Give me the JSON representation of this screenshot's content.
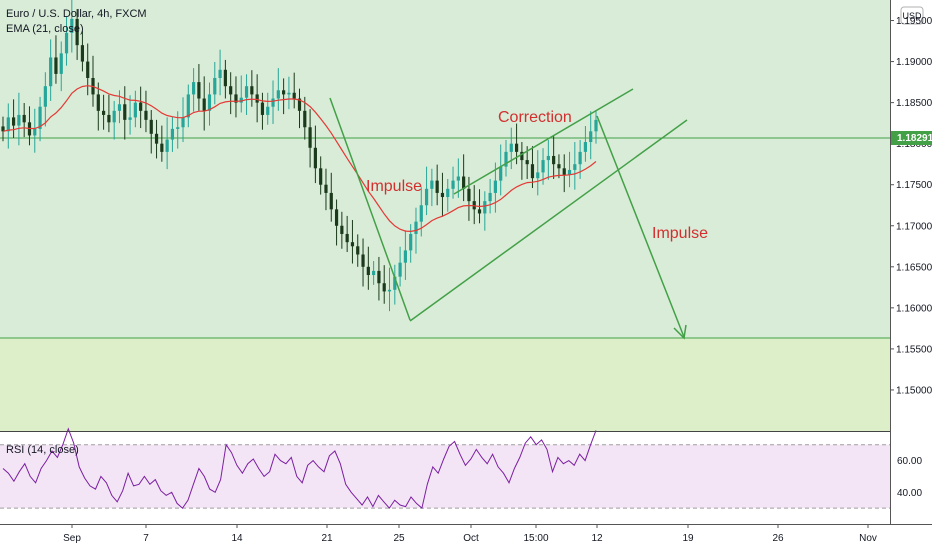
{
  "header": {
    "symbol_title": "Euro / U.S. Dollar, 4h, FXCM",
    "indicator": "EMA (21, close)"
  },
  "rsi": {
    "label": "RSI (14, close)",
    "ticks": [
      "60.00",
      "40.00"
    ],
    "upper_band": 70,
    "lower_band": 30,
    "series_values": [
      55,
      52,
      47,
      53,
      58,
      50,
      46,
      55,
      60,
      66,
      62,
      70,
      80,
      71,
      56,
      49,
      44,
      42,
      50,
      46,
      38,
      34,
      41,
      52,
      44,
      45,
      50,
      45,
      48,
      41,
      38,
      40,
      33,
      30,
      35,
      45,
      55,
      50,
      42,
      40,
      48,
      70,
      65,
      57,
      52,
      58,
      61,
      55,
      50,
      53,
      64,
      60,
      58,
      62,
      50,
      46,
      57,
      60,
      56,
      53,
      63,
      66,
      58,
      45,
      40,
      36,
      32,
      37,
      31,
      38,
      34,
      30,
      35,
      32,
      31,
      37,
      33,
      30,
      45,
      56,
      52,
      61,
      69,
      72,
      64,
      57,
      61,
      67,
      62,
      58,
      64,
      56,
      52,
      46,
      55,
      62,
      71,
      75,
      70,
      73,
      67,
      53,
      62,
      58,
      60,
      57,
      64,
      60,
      70,
      79
    ],
    "color": "#7b1fa2",
    "band_fill": "#f3e5f5"
  },
  "price_axis": {
    "currency_button": "USD",
    "ticks": [
      "1.19500",
      "1.19000",
      "1.18500",
      "1.18000",
      "1.17500",
      "1.17000",
      "1.16500",
      "1.16000",
      "1.15500",
      "1.15000"
    ],
    "current_price_label": "1.18291"
  },
  "time_axis": {
    "labels": [
      "Sep",
      "7",
      "14",
      "21",
      "25",
      "Oct",
      "15:00",
      "12",
      "19",
      "26",
      "Nov"
    ]
  },
  "annotations": {
    "impulse_down": "Impulse",
    "correction": "Correction",
    "impulse_projected": "Impulse"
  },
  "chart_data": {
    "type": "candlestick",
    "title": "Euro / U.S. Dollar, 4h, FXCM",
    "y_range": [
      1.145,
      1.1975
    ],
    "levels": {
      "resistance": 1.1824,
      "support": 1.1595
    },
    "current_price": 1.18291,
    "ohlc_close_series": [
      1.1815,
      1.1832,
      1.1822,
      1.1835,
      1.1826,
      1.181,
      1.1818,
      1.1845,
      1.187,
      1.1905,
      1.1885,
      1.191,
      1.1935,
      1.1952,
      1.192,
      1.19,
      1.188,
      1.186,
      1.184,
      1.1835,
      1.1826,
      1.184,
      1.1848,
      1.1829,
      1.1832,
      1.185,
      1.184,
      1.1829,
      1.1812,
      1.18,
      1.179,
      1.1805,
      1.1818,
      1.182,
      1.1832,
      1.186,
      1.1875,
      1.1855,
      1.184,
      1.186,
      1.188,
      1.189,
      1.187,
      1.186,
      1.185,
      1.1856,
      1.187,
      1.186,
      1.185,
      1.1835,
      1.1845,
      1.1855,
      1.1865,
      1.186,
      1.1862,
      1.1855,
      1.184,
      1.182,
      1.1795,
      1.177,
      1.175,
      1.174,
      1.172,
      1.17,
      1.169,
      1.168,
      1.1675,
      1.1665,
      1.165,
      1.164,
      1.1645,
      1.163,
      1.162,
      1.1622,
      1.1638,
      1.1655,
      1.167,
      1.169,
      1.1705,
      1.1725,
      1.1745,
      1.1755,
      1.174,
      1.1735,
      1.1745,
      1.1755,
      1.176,
      1.1745,
      1.173,
      1.172,
      1.1715,
      1.173,
      1.174,
      1.1755,
      1.1772,
      1.179,
      1.18,
      1.179,
      1.178,
      1.1775,
      1.1758,
      1.1765,
      1.178,
      1.1785,
      1.1775,
      1.177,
      1.1762,
      1.1768,
      1.1775,
      1.179,
      1.1802,
      1.1815,
      1.1829
    ],
    "ema": {
      "name": "EMA (21, close)",
      "color": "#e53935"
    },
    "candle_colors": {
      "up": "#26a69a",
      "down": "#1b3a1b"
    },
    "zones": {
      "upper_fill": "#d8ecd8",
      "lower_fill": "#dcefc9"
    },
    "x_labels": [
      "Sep",
      "7",
      "14",
      "21",
      "25",
      "Oct",
      "15:00",
      "12",
      "19",
      "26",
      "Nov"
    ]
  }
}
